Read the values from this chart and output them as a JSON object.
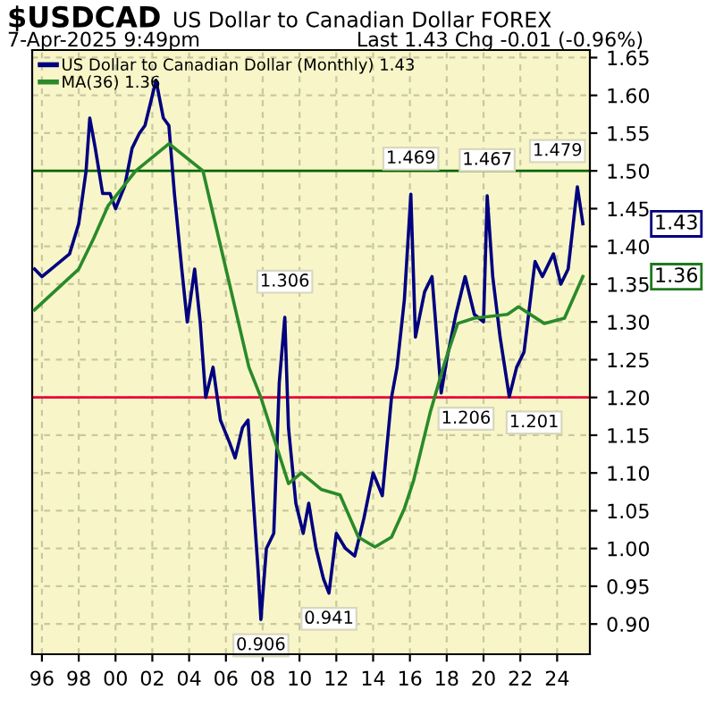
{
  "chart_data": {
    "type": "line",
    "title": "$USDCAD",
    "subtitle": "US Dollar to Canadian Dollar FOREX",
    "annotations": [
      "7-Apr-2025 9:49pm",
      "Last 1.43 Chg -0.01 (-0.96%)",
      {
        "text": "1.469",
        "x": 2016.05,
        "y": 1.469
      },
      {
        "text": "1.467",
        "x": 2020.2,
        "y": 1.467
      },
      {
        "text": "1.479",
        "x": 2025.1,
        "y": 1.479
      },
      {
        "text": "1.306",
        "x": 2009.2,
        "y": 1.306
      },
      {
        "text": "0.906",
        "x": 2007.9,
        "y": 0.906
      },
      {
        "text": "0.941",
        "x": 2011.6,
        "y": 0.941
      },
      {
        "text": "1.206",
        "x": 2017.7,
        "y": 1.206
      },
      {
        "text": "1.201",
        "x": 2021.4,
        "y": 1.201
      },
      "1.43",
      "1.36"
    ],
    "series": [
      {
        "name": "US Dollar to Canadian Dollar (Monthly) 1.43",
        "color": "#000080",
        "x": [
          1995.6,
          1996.0,
          1996.5,
          1997.0,
          1997.5,
          1998.0,
          1998.4,
          1998.6,
          1998.9,
          1999.3,
          1999.7,
          2000.0,
          2000.5,
          2000.9,
          2001.3,
          2001.6,
          2002.0,
          2002.2,
          2002.6,
          2002.9,
          2003.2,
          2003.6,
          2003.9,
          2004.3,
          2004.6,
          2004.9,
          2005.3,
          2005.7,
          2006.2,
          2006.5,
          2006.9,
          2007.2,
          2007.5,
          2007.75,
          2007.9,
          2008.2,
          2008.6,
          2008.9,
          2009.2,
          2009.4,
          2009.8,
          2010.2,
          2010.5,
          2010.9,
          2011.3,
          2011.6,
          2012.0,
          2012.5,
          2013.0,
          2013.5,
          2014.0,
          2014.5,
          2015.0,
          2015.3,
          2015.7,
          2016.05,
          2016.3,
          2016.8,
          2017.2,
          2017.7,
          2018.0,
          2018.5,
          2019.0,
          2019.5,
          2020.0,
          2020.2,
          2020.5,
          2020.9,
          2021.4,
          2021.8,
          2022.2,
          2022.8,
          2023.2,
          2023.8,
          2024.2,
          2024.6,
          2025.1,
          2025.4
        ],
        "values": [
          1.37,
          1.36,
          1.37,
          1.38,
          1.39,
          1.43,
          1.5,
          1.57,
          1.53,
          1.47,
          1.47,
          1.45,
          1.48,
          1.53,
          1.55,
          1.56,
          1.6,
          1.62,
          1.57,
          1.56,
          1.47,
          1.37,
          1.3,
          1.37,
          1.3,
          1.2,
          1.24,
          1.17,
          1.14,
          1.12,
          1.16,
          1.17,
          1.06,
          0.97,
          0.906,
          1.0,
          1.02,
          1.22,
          1.306,
          1.16,
          1.06,
          1.02,
          1.06,
          1.0,
          0.96,
          0.941,
          1.02,
          1.0,
          0.99,
          1.04,
          1.1,
          1.07,
          1.2,
          1.24,
          1.33,
          1.469,
          1.28,
          1.34,
          1.36,
          1.206,
          1.25,
          1.31,
          1.36,
          1.31,
          1.3,
          1.467,
          1.36,
          1.28,
          1.201,
          1.24,
          1.26,
          1.38,
          1.36,
          1.39,
          1.35,
          1.37,
          1.479,
          1.43
        ]
      },
      {
        "name": "MA(36) 1.36",
        "color": "#2a8a2a",
        "x": [
          1995.6,
          1998.0,
          1998.8,
          1999.6,
          2001.1,
          2002.9,
          2004.75,
          2006.1,
          2007.25,
          2007.9,
          2009.4,
          2010.1,
          2011.2,
          2012.2,
          2013.2,
          2014.1,
          2015.0,
          2015.7,
          2016.2,
          2017.1,
          2017.9,
          2018.6,
          2019.5,
          2021.3,
          2021.9,
          2023.3,
          2024.4,
          2025.4
        ],
        "values": [
          1.316,
          1.37,
          1.41,
          1.454,
          1.5,
          1.536,
          1.5,
          1.36,
          1.24,
          1.2,
          1.086,
          1.1,
          1.078,
          1.071,
          1.015,
          1.002,
          1.015,
          1.053,
          1.09,
          1.18,
          1.247,
          1.298,
          1.305,
          1.31,
          1.32,
          1.298,
          1.305,
          1.36
        ]
      }
    ],
    "xlim": [
      1995.47,
      2025.78
    ],
    "ylim": [
      0.86,
      1.66
    ],
    "xticks": [
      {
        "value": 1996,
        "label": "96"
      },
      {
        "value": 1998,
        "label": "98"
      },
      {
        "value": 2000,
        "label": "00"
      },
      {
        "value": 2002,
        "label": "02"
      },
      {
        "value": 2004,
        "label": "04"
      },
      {
        "value": 2006,
        "label": "06"
      },
      {
        "value": 2008,
        "label": "08"
      },
      {
        "value": 2010,
        "label": "10"
      },
      {
        "value": 2012,
        "label": "12"
      },
      {
        "value": 2014,
        "label": "14"
      },
      {
        "value": 2016,
        "label": "16"
      },
      {
        "value": 2018,
        "label": "18"
      },
      {
        "value": 2020,
        "label": "20"
      },
      {
        "value": 2022,
        "label": "22"
      },
      {
        "value": 2024,
        "label": "24"
      }
    ],
    "yticks": [
      {
        "value": 0.9,
        "label": "0.90"
      },
      {
        "value": 0.95,
        "label": "0.95"
      },
      {
        "value": 1.0,
        "label": "1.00"
      },
      {
        "value": 1.05,
        "label": "1.05"
      },
      {
        "value": 1.1,
        "label": "1.10"
      },
      {
        "value": 1.15,
        "label": "1.15"
      },
      {
        "value": 1.2,
        "label": "1.20"
      },
      {
        "value": 1.25,
        "label": "1.25"
      },
      {
        "value": 1.3,
        "label": "1.30"
      },
      {
        "value": 1.35,
        "label": "1.35"
      },
      {
        "value": 1.4,
        "label": "1.40"
      },
      {
        "value": 1.45,
        "label": "1.45"
      },
      {
        "value": 1.5,
        "label": "1.50"
      },
      {
        "value": 1.55,
        "label": "1.55"
      },
      {
        "value": 1.6,
        "label": "1.60"
      },
      {
        "value": 1.65,
        "label": "1.65"
      }
    ],
    "ref_lines": [
      {
        "axis": "y",
        "value": 1.5,
        "color": "#006400"
      },
      {
        "axis": "y",
        "value": 1.2,
        "color": "#e8003a"
      }
    ],
    "grid": true,
    "legend": "top left"
  }
}
